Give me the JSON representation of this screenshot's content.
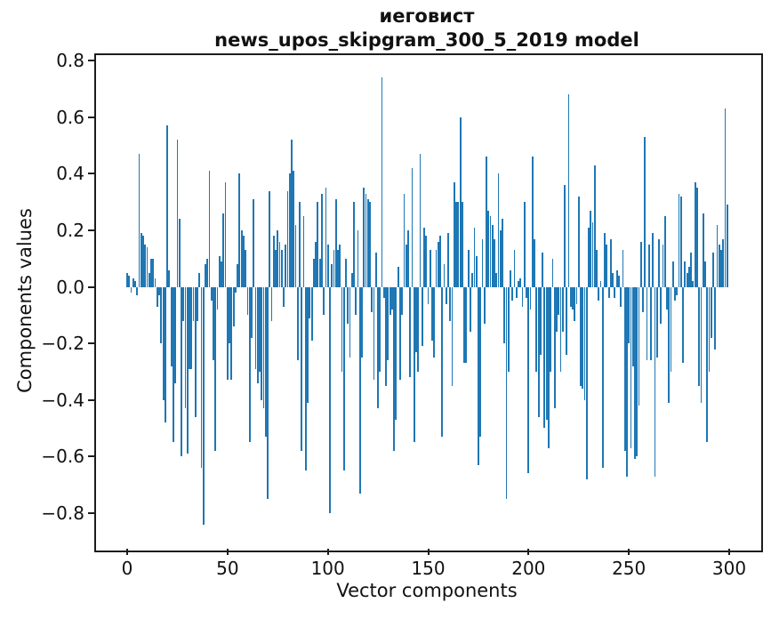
{
  "figure": {
    "title_line1": "иеговист",
    "title_line2": "news_upos_skipgram_300_5_2019 model",
    "background_color": "#ffffff",
    "text_color": "#111111"
  },
  "chart_data": {
    "type": "bar",
    "title": "иеговист",
    "subtitle": "news_upos_skipgram_300_5_2019 model",
    "xlabel": "Vector components",
    "ylabel": "Components values",
    "bar_color": "#1f77b4",
    "grid": false,
    "legend": null,
    "n_components": 300,
    "xlim": [
      -15.5,
      314.5
    ],
    "ylim": [
      -0.92,
      0.82
    ],
    "x_ticks": [
      0,
      50,
      100,
      150,
      200,
      250,
      300
    ],
    "y_ticks": [
      0.8,
      0.6,
      0.4,
      0.2,
      0.0,
      -0.2,
      -0.4,
      -0.6,
      -0.8
    ],
    "values": [
      0.05,
      0.04,
      -0.02,
      0.03,
      0.02,
      -0.03,
      0.47,
      0.19,
      0.18,
      0.15,
      0.14,
      0.05,
      0.1,
      0.1,
      0.03,
      -0.07,
      -0.03,
      -0.2,
      -0.4,
      -0.48,
      0.57,
      0.06,
      -0.28,
      -0.55,
      -0.34,
      0.52,
      0.24,
      -0.6,
      -0.12,
      -0.43,
      -0.59,
      -0.29,
      -0.29,
      -0.12,
      -0.46,
      -0.12,
      0.05,
      -0.64,
      -0.84,
      0.08,
      0.1,
      0.41,
      -0.05,
      -0.26,
      -0.58,
      -0.08,
      0.11,
      0.09,
      0.26,
      0.37,
      -0.33,
      -0.2,
      -0.33,
      -0.14,
      -0.02,
      0.08,
      0.4,
      0.2,
      0.18,
      0.13,
      -0.1,
      -0.55,
      -0.18,
      0.31,
      -0.29,
      -0.34,
      -0.3,
      -0.4,
      -0.43,
      -0.53,
      -0.75,
      0.34,
      -0.12,
      0.18,
      0.13,
      0.2,
      0.16,
      0.13,
      -0.07,
      0.15,
      0.34,
      0.4,
      0.52,
      0.41,
      0.22,
      -0.26,
      0.3,
      -0.58,
      0.25,
      -0.65,
      -0.41,
      -0.11,
      -0.19,
      0.1,
      0.16,
      0.3,
      0.1,
      0.33,
      -0.1,
      0.35,
      0.15,
      -0.8,
      0.08,
      0.13,
      0.31,
      0.13,
      0.15,
      -0.3,
      -0.65,
      0.1,
      -0.13,
      -0.25,
      0.05,
      0.3,
      -0.1,
      0.2,
      -0.73,
      -0.25,
      0.35,
      0.33,
      0.31,
      0.3,
      -0.09,
      -0.33,
      0.12,
      -0.43,
      -0.3,
      0.74,
      -0.04,
      -0.35,
      -0.26,
      -0.1,
      -0.08,
      -0.58,
      -0.47,
      0.07,
      -0.33,
      -0.1,
      0.33,
      0.15,
      0.2,
      -0.32,
      0.42,
      -0.55,
      -0.23,
      -0.3,
      0.47,
      -0.21,
      0.21,
      0.18,
      -0.06,
      0.13,
      -0.19,
      -0.25,
      0.13,
      0.16,
      0.18,
      -0.53,
      0.08,
      -0.06,
      0.19,
      -0.12,
      -0.35,
      0.37,
      0.3,
      0.3,
      0.6,
      0.3,
      -0.27,
      -0.27,
      0.13,
      -0.16,
      0.05,
      0.21,
      0.11,
      -0.63,
      -0.53,
      0.17,
      -0.13,
      0.46,
      0.27,
      0.25,
      0.22,
      0.17,
      0.05,
      0.4,
      0.2,
      0.24,
      -0.2,
      -0.75,
      -0.3,
      0.06,
      -0.05,
      0.13,
      -0.04,
      0.02,
      0.03,
      -0.07,
      0.3,
      -0.04,
      -0.66,
      -0.08,
      0.46,
      0.17,
      -0.3,
      -0.46,
      -0.24,
      0.12,
      -0.5,
      -0.47,
      -0.57,
      -0.3,
      0.1,
      -0.43,
      -0.16,
      -0.1,
      -0.3,
      -0.16,
      0.36,
      -0.24,
      0.68,
      -0.07,
      -0.08,
      -0.12,
      -0.06,
      0.32,
      -0.35,
      -0.36,
      -0.4,
      -0.68,
      0.21,
      0.27,
      0.23,
      0.43,
      0.13,
      -0.05,
      0.02,
      -0.64,
      0.19,
      0.15,
      -0.04,
      0.17,
      0.05,
      -0.04,
      0.06,
      0.04,
      -0.07,
      0.13,
      -0.58,
      -0.67,
      -0.2,
      -0.57,
      -0.28,
      -0.61,
      -0.6,
      -0.42,
      0.16,
      -0.09,
      0.53,
      -0.26,
      0.15,
      -0.26,
      0.19,
      -0.67,
      -0.25,
      0.17,
      -0.13,
      0.15,
      0.25,
      -0.08,
      -0.41,
      -0.3,
      0.09,
      -0.05,
      -0.03,
      0.33,
      0.32,
      -0.27,
      0.09,
      0.05,
      0.07,
      0.12,
      0.02,
      0.37,
      0.35,
      -0.35,
      -0.41,
      0.26,
      0.09,
      -0.55,
      -0.3,
      -0.18,
      0.12,
      -0.22,
      0.22,
      0.15,
      0.13,
      0.17,
      0.63,
      0.29
    ]
  }
}
